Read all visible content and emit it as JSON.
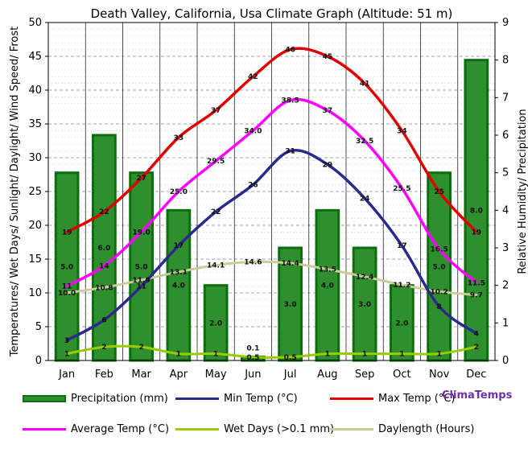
{
  "chart_data": {
    "type": "bar+line",
    "title": "Death Valley, California, Usa Climate Graph (Altitude: 51 m)",
    "ylabel_left": "Temperatures/ Wet Days/ Sunlight/ Daylight/ Wind Speed/ Frost",
    "ylabel_right": "Relative Humidity/ Precipitation",
    "categories": [
      "Jan",
      "Feb",
      "Mar",
      "Apr",
      "May",
      "Jun",
      "Jul",
      "Aug",
      "Sep",
      "Oct",
      "Nov",
      "Dec"
    ],
    "ylim_left": [
      0,
      50
    ],
    "yticks_left": [
      0,
      5,
      10,
      15,
      20,
      25,
      30,
      35,
      40,
      45,
      50
    ],
    "ylim_right": [
      0,
      9
    ],
    "yticks_right": [
      0,
      1,
      2,
      3,
      4,
      5,
      6,
      7,
      8,
      9
    ],
    "grid": true,
    "series": [
      {
        "name": "Precipitation (mm)",
        "kind": "bar",
        "axis": "right",
        "color": "#2f8f2f",
        "values": [
          5.0,
          6.0,
          5.0,
          4.0,
          2.0,
          0.1,
          3.0,
          4.0,
          3.0,
          2.0,
          5.0,
          8.0
        ],
        "labels": [
          "5.0",
          "6.0",
          "5.0",
          "4.0",
          "2.0",
          "0.1",
          "3.0",
          "4.0",
          "3.0",
          "2.0",
          "5.0",
          "8.0"
        ]
      },
      {
        "name": "Min Temp (°C)",
        "kind": "line",
        "axis": "left",
        "color": "#2a2a8c",
        "values": [
          3,
          6,
          11,
          17,
          22,
          26,
          31,
          29,
          24,
          17,
          8,
          4
        ],
        "labels": [
          "3",
          "6",
          "11",
          "17",
          "22",
          "26",
          "31",
          "29",
          "24",
          "17",
          "8",
          "4"
        ]
      },
      {
        "name": "Max Temp (°C)",
        "kind": "line",
        "axis": "left",
        "color": "#e00000",
        "values": [
          19,
          22,
          27,
          33,
          37,
          42,
          46,
          45,
          41,
          34,
          25,
          19
        ],
        "labels": [
          "19",
          "22",
          "27",
          "33",
          "37",
          "42",
          "46",
          "45",
          "41",
          "34",
          "25",
          "19"
        ]
      },
      {
        "name": "Average Temp (°C)",
        "kind": "line",
        "axis": "left",
        "color": "#ff00ff",
        "values": [
          11,
          14,
          19,
          25,
          29.5,
          34,
          38.5,
          37,
          32.5,
          25.5,
          16.5,
          11.5
        ],
        "labels": [
          "11",
          "14",
          "19.0",
          "25.0",
          "29.5",
          "34.0",
          "38.5",
          "37",
          "32.5",
          "25.5",
          "16.5",
          "11.5"
        ]
      },
      {
        "name": "Wet Days (>0.1 mm)",
        "kind": "line",
        "axis": "left",
        "color": "#99cc00",
        "values": [
          1,
          2,
          2,
          1,
          1,
          0.5,
          0.5,
          1,
          1,
          1,
          1,
          2
        ],
        "labels": [
          "1",
          "2",
          "2",
          "1",
          "1",
          "0.5",
          "0.5",
          "1",
          "1",
          "1",
          "1",
          "2"
        ]
      },
      {
        "name": "Daylength (Hours)",
        "kind": "line",
        "axis": "left",
        "color": "#cccc99",
        "values": [
          10.0,
          10.8,
          11.9,
          13.1,
          14.1,
          14.6,
          14.4,
          13.5,
          12.4,
          11.2,
          10.2,
          9.7
        ],
        "labels": [
          "10.0",
          "10.8",
          "11.9",
          "13.1",
          "14.1",
          "14.6",
          "14.4",
          "13.5",
          "12.4",
          "11.2",
          "10.2",
          "9.7"
        ]
      }
    ]
  },
  "legend": {
    "precipitation": "Precipitation (mm)",
    "min_temp": "Min Temp (°C)",
    "max_temp": "Max Temp (°C)",
    "avg_temp": "Average Temp (°C)",
    "wet_days": "Wet Days (>0.1 mm)",
    "daylength": "Daylength (Hours)"
  },
  "brand": "ClimaTemps"
}
